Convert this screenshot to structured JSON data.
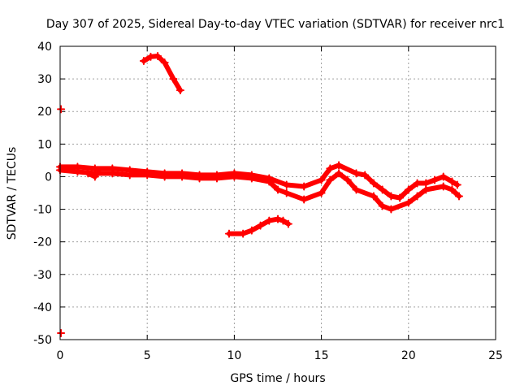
{
  "chart_data": {
    "type": "scatter",
    "title": "Day 307 of 2025, Sidereal Day-to-day VTEC variation (SDTVAR) for receiver nrc1",
    "xlabel": "GPS time / hours",
    "ylabel": "SDTVAR / TECUs",
    "xlim": [
      0,
      25
    ],
    "ylim": [
      -50,
      40
    ],
    "xticks": [
      0,
      5,
      10,
      15,
      20,
      25
    ],
    "yticks": [
      -50,
      -40,
      -30,
      -20,
      -10,
      0,
      10,
      20,
      30,
      40
    ],
    "grid": true,
    "legend": "none",
    "series_color": "#ff0000",
    "series": [
      {
        "name": "main-band-upper",
        "points": [
          [
            0,
            3
          ],
          [
            1,
            3
          ],
          [
            2,
            2.5
          ],
          [
            3,
            2.5
          ],
          [
            4,
            2
          ],
          [
            5,
            1.5
          ],
          [
            6,
            1
          ],
          [
            7,
            1
          ],
          [
            8,
            0.5
          ],
          [
            9,
            0.5
          ],
          [
            10,
            1
          ],
          [
            11,
            0.5
          ],
          [
            12,
            -0.5
          ],
          [
            13,
            -2.5
          ],
          [
            14,
            -3
          ],
          [
            15,
            -1
          ],
          [
            15.5,
            2.5
          ],
          [
            16,
            3.5
          ],
          [
            17,
            1
          ],
          [
            17.5,
            0.5
          ],
          [
            18,
            -2
          ],
          [
            18.5,
            -4
          ],
          [
            19,
            -6
          ],
          [
            19.5,
            -6.5
          ],
          [
            20,
            -4
          ],
          [
            20.5,
            -2
          ],
          [
            21,
            -2
          ],
          [
            21.5,
            -1
          ],
          [
            22,
            0
          ],
          [
            22.5,
            -1.5
          ],
          [
            22.8,
            -2.5
          ]
        ]
      },
      {
        "name": "main-band-lower",
        "points": [
          [
            0,
            2
          ],
          [
            1,
            1.5
          ],
          [
            2,
            1
          ],
          [
            3,
            1
          ],
          [
            4,
            0.5
          ],
          [
            5,
            0.5
          ],
          [
            6,
            0
          ],
          [
            7,
            0
          ],
          [
            8,
            -0.5
          ],
          [
            9,
            -0.5
          ],
          [
            10,
            0
          ],
          [
            11,
            -0.5
          ],
          [
            12,
            -1.5
          ],
          [
            12.5,
            -4
          ],
          [
            13,
            -5
          ],
          [
            14,
            -7
          ],
          [
            15,
            -5
          ],
          [
            15.5,
            -1
          ],
          [
            16,
            1
          ],
          [
            16.5,
            -1
          ],
          [
            17,
            -4
          ],
          [
            18,
            -6
          ],
          [
            18.5,
            -9
          ],
          [
            19,
            -10
          ],
          [
            20,
            -8
          ],
          [
            20.5,
            -6
          ],
          [
            21,
            -4
          ],
          [
            22,
            -3
          ],
          [
            22.5,
            -4
          ],
          [
            22.9,
            -6
          ]
        ]
      },
      {
        "name": "dip-near-2h",
        "points": [
          [
            1.6,
            1
          ],
          [
            2,
            0
          ],
          [
            2.2,
            1.5
          ]
        ]
      },
      {
        "name": "upper-arc",
        "points": [
          [
            4.8,
            35.5
          ],
          [
            5.2,
            36.8
          ],
          [
            5.6,
            37
          ],
          [
            6,
            35
          ],
          [
            6.5,
            30
          ],
          [
            6.9,
            26.5
          ]
        ]
      },
      {
        "name": "lower-arc",
        "points": [
          [
            9.7,
            -17.5
          ],
          [
            10.5,
            -17.5
          ],
          [
            11,
            -16.5
          ],
          [
            11.5,
            -15
          ],
          [
            12,
            -13.5
          ],
          [
            12.5,
            -13
          ],
          [
            12.8,
            -13.5
          ],
          [
            13.1,
            -14.5
          ]
        ]
      },
      {
        "name": "point-20",
        "points": [
          [
            0.05,
            20.7
          ]
        ]
      },
      {
        "name": "point-minus-48",
        "points": [
          [
            0.05,
            -48
          ]
        ]
      }
    ]
  }
}
